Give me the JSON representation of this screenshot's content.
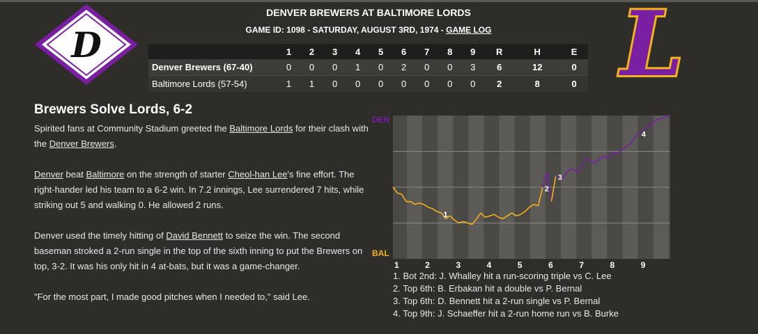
{
  "game": {
    "title": "DENVER BREWERS AT BALTIMORE LORDS",
    "subtitle": "GAME ID: 1098 - SATURDAY, AUGUST 3RD, 1974 -",
    "game_log_link": "GAME LOG"
  },
  "logos": {
    "away_letter": "D",
    "home_letter": "L"
  },
  "colors": {
    "purple": "#7a1fa2",
    "gold": "#f5b31b",
    "background": "#2e2d2a"
  },
  "linescore": {
    "headers": [
      "",
      "1",
      "2",
      "3",
      "4",
      "5",
      "6",
      "7",
      "8",
      "9",
      "R",
      "H",
      "E"
    ],
    "rows": [
      {
        "team": "Denver Brewers (67-40)",
        "innings": [
          "0",
          "0",
          "0",
          "1",
          "0",
          "2",
          "0",
          "0",
          "3"
        ],
        "r": "6",
        "h": "12",
        "e": "0"
      },
      {
        "team": "Baltimore Lords (57-54)",
        "innings": [
          "1",
          "1",
          "0",
          "0",
          "0",
          "0",
          "0",
          "0",
          "0"
        ],
        "r": "2",
        "h": "8",
        "e": "0"
      }
    ]
  },
  "story": {
    "headline": "Brewers Solve Lords, 6-2",
    "p1": {
      "a": "Spirited fans at Community Stadium greeted the ",
      "link1": "Baltimore Lords",
      "b": " for their clash with the ",
      "link2": "Denver Brewers",
      "c": "."
    },
    "p2": {
      "link1": "Denver",
      "a": " beat ",
      "link2": "Baltimore",
      "b": " on the strength of starter ",
      "link3": "Cheol-han Lee",
      "c": "'s fine effort. The right-hander led his team to a 6-2 win. In 7.2 innings, Lee surrendered 7 hits, while striking out 5 and walking 0. He allowed 2 runs."
    },
    "p3": {
      "a": "Denver used the timely hitting of ",
      "link1": "David Bennett",
      "b": " to seize the win. The second baseman stroked a 2-run single in the top of the sixth inning to put the Brewers on top, 3-2. It was his only hit in 4 at-bats, but it was a game-changer."
    },
    "p4": "\"For the most part, I made good pitches when I needed to,\" said Lee."
  },
  "chart_data": {
    "type": "line",
    "title": "",
    "ylabel_top": "DEN",
    "ylabel_bottom": "BAL",
    "x_labels": [
      "1",
      "2",
      "3",
      "4",
      "5",
      "6",
      "7",
      "8",
      "9"
    ],
    "ylim": [
      0,
      100
    ],
    "series": [
      {
        "values": [
          50,
          46,
          45,
          40,
          40,
          38,
          39,
          38,
          36,
          35,
          33,
          32,
          28,
          30,
          27,
          25,
          26,
          25,
          24,
          28,
          32,
          29,
          30,
          31,
          29,
          28,
          30,
          32,
          30,
          31,
          33,
          36,
          38,
          37,
          50,
          60,
          40,
          58,
          55,
          58,
          62,
          63,
          60,
          66,
          70,
          68,
          67,
          70,
          72,
          70,
          74,
          73,
          76,
          78,
          80,
          85,
          88,
          90,
          92,
          95,
          97,
          98,
          99,
          100
        ]
      }
    ],
    "markers": [
      {
        "label": "1",
        "index": 11
      },
      {
        "label": "2",
        "index": 34
      },
      {
        "label": "3",
        "index": 37
      },
      {
        "label": "4",
        "index": 56
      }
    ],
    "plays": [
      "1. Bot 2nd: J. Whalley hit a run-scoring triple vs C. Lee",
      "2. Top 6th: B. Erbakan hit a double vs P. Bernal",
      "3. Top 6th: D. Bennett hit a 2-run single vs P. Bernal",
      "4. Top 9th: J. Schaeffer hit a 2-run home run vs B. Burke"
    ]
  }
}
